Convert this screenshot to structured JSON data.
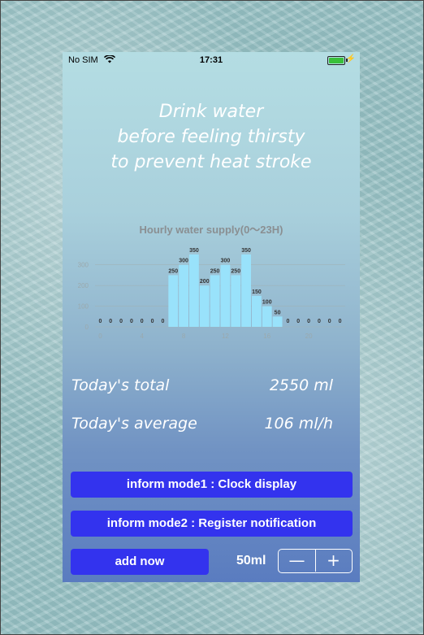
{
  "status_bar": {
    "carrier": "No SIM",
    "time": "17:31",
    "battery_color": "#39c03a"
  },
  "headline": {
    "line1": "Drink water",
    "line2": "before feeling thirsty",
    "line3": "to prevent heat stroke"
  },
  "chart_title": "Hourly water supply(0〜23H)",
  "chart_data": {
    "type": "bar",
    "title": "Hourly water supply(0〜23H)",
    "x": [
      0,
      1,
      2,
      3,
      4,
      5,
      6,
      7,
      8,
      9,
      10,
      11,
      12,
      13,
      14,
      15,
      16,
      17,
      18,
      19,
      20,
      21,
      22,
      23
    ],
    "values": [
      0,
      0,
      0,
      0,
      0,
      0,
      0,
      250,
      300,
      350,
      200,
      250,
      300,
      250,
      350,
      150,
      100,
      50,
      0,
      0,
      0,
      0,
      0,
      0
    ],
    "x_ticks": [
      0,
      4,
      8,
      12,
      16,
      20
    ],
    "y_ticks": [
      0,
      100,
      200,
      300
    ],
    "ylim": [
      0,
      350
    ],
    "bar_color": "#99e2fb",
    "grid": true
  },
  "stats": {
    "total_label": "Today's total",
    "total_value": "2550 ml",
    "average_label": "Today's average",
    "average_value": "106 ml/h"
  },
  "buttons": {
    "inform1": "inform mode1 : Clock display",
    "inform2": "inform mode2 : Register notification",
    "add_now": "add now",
    "amount": "50ml",
    "minus": "—",
    "plus": "+",
    "accent_color": "#3333ee"
  }
}
